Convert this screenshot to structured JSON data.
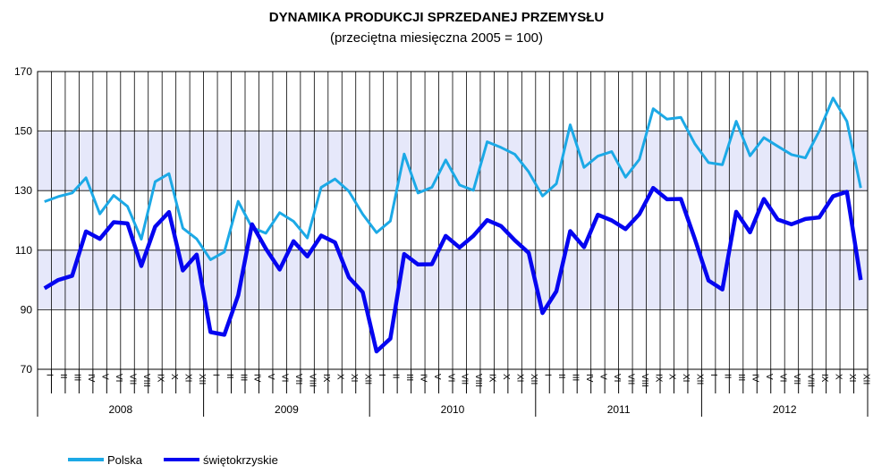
{
  "chart_data": {
    "type": "line",
    "title": "DYNAMIKA PRODUKCJI SPRZEDANEJ PRZEMYSŁU",
    "subtitle": "(przeciętna miesięczna 2005 = 100)",
    "ylim": [
      70,
      170
    ],
    "yticks": [
      70,
      90,
      110,
      130,
      150,
      170
    ],
    "grid": true,
    "legend": "bottom-left",
    "months": [
      "I",
      "II",
      "III",
      "IV",
      "V",
      "VI",
      "VII",
      "VIII",
      "IX",
      "X",
      "XI",
      "XII"
    ],
    "years": [
      "2008",
      "2009",
      "2010",
      "2011",
      "2012"
    ],
    "series": [
      {
        "name": "Polska",
        "color": "#1ca9e6",
        "values": [
          126.3,
          128.0,
          129.2,
          134.3,
          122.2,
          128.4,
          124.7,
          113.7,
          133.0,
          135.7,
          117.4,
          113.8,
          106.8,
          109.4,
          126.4,
          117.6,
          115.7,
          122.6,
          119.7,
          114.1,
          131.1,
          133.9,
          129.8,
          122.1,
          115.9,
          119.8,
          142.3,
          129.2,
          131.1,
          140.3,
          131.9,
          130.1,
          146.4,
          144.5,
          142.2,
          136.3,
          128.2,
          132.3,
          152.1,
          137.8,
          141.6,
          143.1,
          134.5,
          140.5,
          157.5,
          154.0,
          154.6,
          145.8,
          139.4,
          138.7,
          153.3,
          141.7,
          147.8,
          144.9,
          142.1,
          141.0,
          150.0,
          161.1,
          153.3,
          130.9
        ]
      },
      {
        "name": "świętokrzyskie",
        "color": "#0505f0",
        "values": [
          97.2,
          100.0,
          101.4,
          116.3,
          113.8,
          119.4,
          119.0,
          104.7,
          117.9,
          122.8,
          103.2,
          108.5,
          82.5,
          81.6,
          94.8,
          118.7,
          110.5,
          103.5,
          113.0,
          107.9,
          114.9,
          112.6,
          100.9,
          95.9,
          76.0,
          80.3,
          108.7,
          105.2,
          105.3,
          114.8,
          110.9,
          114.8,
          120.1,
          118.1,
          113.3,
          109.1,
          88.9,
          96.2,
          116.4,
          111.0,
          121.9,
          120.0,
          117.1,
          122.1,
          130.9,
          127.1,
          127.2,
          113.9,
          99.8,
          96.8,
          122.9,
          116.0,
          127.2,
          120.3,
          118.7,
          120.5,
          121.0,
          128.1,
          129.6,
          100.0
        ]
      }
    ]
  }
}
